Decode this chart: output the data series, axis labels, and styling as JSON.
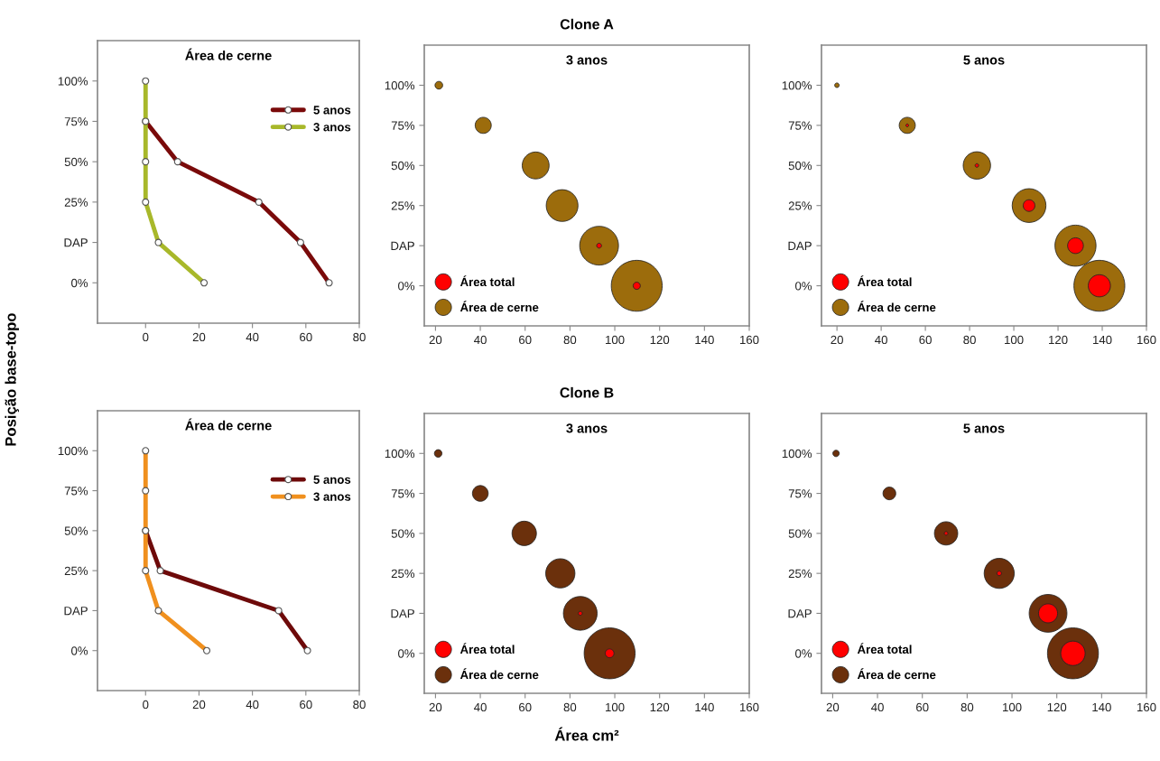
{
  "chart_data": [
    {
      "type": "line",
      "orientation": "horizontal",
      "title": "Área de cerne",
      "ylabel": "Posição base-topo",
      "categories": [
        "100%",
        "75%",
        "50%",
        "25%",
        "DAP",
        "0%"
      ],
      "xlim": [
        -18,
        80
      ],
      "xticks": [
        0,
        20,
        40,
        60,
        80
      ],
      "marker": "circle",
      "line_style": "solid",
      "legend": "top right",
      "series": [
        {
          "name": "5 anos",
          "color": "#7a0a0a",
          "values": [
            null,
            0,
            12,
            42.4,
            58,
            68.7
          ]
        },
        {
          "name": "3 anos",
          "color": "#a8b82a",
          "values": [
            0,
            0,
            0,
            0,
            4.8,
            21.9
          ]
        }
      ]
    },
    {
      "type": "bubble",
      "orientation": "horizontal",
      "title": "3 anos",
      "annotations": [
        "Clone A"
      ],
      "categories": [
        "100%",
        "75%",
        "50%",
        "25%",
        "DAP",
        "0%"
      ],
      "xlim": [
        15,
        160
      ],
      "xticks": [
        20,
        40,
        60,
        80,
        100,
        120,
        140,
        160
      ],
      "legend": "bottom left",
      "series": [
        {
          "name": "Área de cerne",
          "color": "#9c6c0c",
          "values": [
            21.5,
            41.3,
            64.7,
            76.5,
            93,
            109.8
          ],
          "sizes": [
            0.023,
            0.1,
            0.28,
            0.39,
            0.58,
            1
          ]
        },
        {
          "name": "Área total",
          "color": "#ff0000",
          "values": [
            null,
            null,
            null,
            null,
            93,
            109.8
          ],
          "sizes": [
            null,
            null,
            null,
            null,
            0.009,
            0.02
          ]
        }
      ]
    },
    {
      "type": "bubble",
      "orientation": "horizontal",
      "title": "5 anos",
      "categories": [
        "100%",
        "75%",
        "50%",
        "25%",
        "DAP",
        "0%"
      ],
      "xlim": [
        13,
        160
      ],
      "xticks": [
        20,
        40,
        60,
        80,
        100,
        120,
        140,
        160
      ],
      "legend": "bottom left",
      "series": [
        {
          "name": "Área de cerne",
          "color": "#9c6c0c",
          "values": [
            20,
            51.8,
            83.3,
            106.9,
            127.9,
            138.7
          ],
          "sizes": [
            0.008,
            0.1,
            0.29,
            0.44,
            0.65,
            1
          ]
        },
        {
          "name": "Área total",
          "color": "#ff0000",
          "values": [
            null,
            51.8,
            83.3,
            106.9,
            127.9,
            138.7
          ],
          "sizes": [
            null,
            0.003,
            0.005,
            0.053,
            0.096,
            0.19
          ]
        }
      ]
    },
    {
      "type": "line",
      "orientation": "horizontal",
      "title": "Área de cerne",
      "categories": [
        "100%",
        "75%",
        "50%",
        "25%",
        "DAP",
        "0%"
      ],
      "xlim": [
        -18,
        80
      ],
      "xticks": [
        0,
        20,
        40,
        60,
        80
      ],
      "marker": "circle",
      "line_style": "solid",
      "legend": "top right",
      "series": [
        {
          "name": "5 anos",
          "color": "#6e0a0a",
          "values": [
            null,
            null,
            0,
            5.5,
            49.8,
            60.6
          ]
        },
        {
          "name": "3 anos",
          "color": "#f0901e",
          "values": [
            0,
            0,
            0,
            0,
            4.8,
            22.9
          ]
        }
      ]
    },
    {
      "type": "bubble",
      "orientation": "horizontal",
      "title": "3 anos",
      "xlabel": "Área cm²",
      "annotations": [
        "Clone B"
      ],
      "categories": [
        "100%",
        "75%",
        "50%",
        "25%",
        "DAP",
        "0%"
      ],
      "xlim": [
        15,
        160
      ],
      "xticks": [
        20,
        40,
        60,
        80,
        100,
        120,
        140,
        160
      ],
      "legend": "bottom left",
      "series": [
        {
          "name": "Área de cerne",
          "color": "#6b300c",
          "values": [
            21.2,
            40,
            59.6,
            75.7,
            84.6,
            97.7
          ],
          "sizes": [
            0.022,
            0.096,
            0.23,
            0.33,
            0.44,
            1
          ]
        },
        {
          "name": "Área total",
          "color": "#ff0000",
          "values": [
            null,
            null,
            null,
            null,
            84.6,
            97.7
          ],
          "sizes": [
            null,
            null,
            null,
            null,
            0.006,
            0.03
          ]
        }
      ]
    },
    {
      "type": "bubble",
      "orientation": "horizontal",
      "title": "5 anos",
      "categories": [
        "100%",
        "75%",
        "50%",
        "25%",
        "DAP",
        "0%"
      ],
      "xlim": [
        15,
        160
      ],
      "xticks": [
        20,
        40,
        60,
        80,
        100,
        120,
        140,
        160
      ],
      "legend": "bottom left",
      "series": [
        {
          "name": "Área de cerne",
          "color": "#6b300c",
          "values": [
            21.5,
            45.3,
            70.6,
            94.3,
            116.1,
            127.2
          ],
          "sizes": [
            0.016,
            0.063,
            0.21,
            0.35,
            0.55,
            1
          ]
        },
        {
          "name": "Área total",
          "color": "#ff0000",
          "values": [
            null,
            null,
            70.6,
            94.3,
            116.1,
            127.2
          ],
          "sizes": [
            null,
            null,
            0.005,
            0.008,
            0.14,
            0.23
          ]
        }
      ]
    }
  ]
}
